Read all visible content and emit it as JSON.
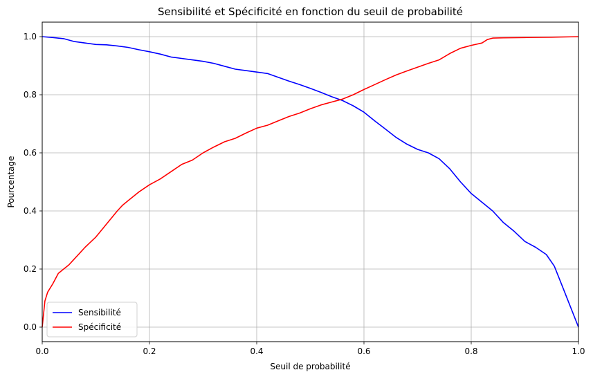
{
  "chart_data": {
    "type": "line",
    "title": "Sensibilité et Spécificité en fonction du seuil de probabilité",
    "xlabel": "Seuil de probabilité",
    "ylabel": "Pourcentage",
    "xlim": [
      0.0,
      1.0
    ],
    "ylim": [
      -0.05,
      1.05
    ],
    "xticks": [
      "0.0",
      "0.2",
      "0.4",
      "0.6",
      "0.8",
      "1.0"
    ],
    "yticks": [
      "0.0",
      "0.2",
      "0.4",
      "0.6",
      "0.8",
      "1.0"
    ],
    "grid": true,
    "legend_position": "lower-left",
    "series": [
      {
        "name": "Sensibilité",
        "color": "#0000ff",
        "points": [
          [
            0.0,
            1.0
          ],
          [
            0.02,
            0.997
          ],
          [
            0.04,
            0.993
          ],
          [
            0.06,
            0.983
          ],
          [
            0.08,
            0.978
          ],
          [
            0.1,
            0.973
          ],
          [
            0.12,
            0.972
          ],
          [
            0.14,
            0.968
          ],
          [
            0.16,
            0.963
          ],
          [
            0.18,
            0.955
          ],
          [
            0.2,
            0.948
          ],
          [
            0.22,
            0.94
          ],
          [
            0.24,
            0.93
          ],
          [
            0.26,
            0.925
          ],
          [
            0.28,
            0.92
          ],
          [
            0.3,
            0.915
          ],
          [
            0.32,
            0.908
          ],
          [
            0.34,
            0.898
          ],
          [
            0.36,
            0.888
          ],
          [
            0.38,
            0.883
          ],
          [
            0.4,
            0.878
          ],
          [
            0.42,
            0.873
          ],
          [
            0.44,
            0.86
          ],
          [
            0.46,
            0.847
          ],
          [
            0.48,
            0.835
          ],
          [
            0.5,
            0.822
          ],
          [
            0.52,
            0.808
          ],
          [
            0.54,
            0.793
          ],
          [
            0.56,
            0.78
          ],
          [
            0.58,
            0.762
          ],
          [
            0.6,
            0.74
          ],
          [
            0.62,
            0.71
          ],
          [
            0.64,
            0.682
          ],
          [
            0.66,
            0.653
          ],
          [
            0.68,
            0.63
          ],
          [
            0.7,
            0.612
          ],
          [
            0.72,
            0.6
          ],
          [
            0.74,
            0.58
          ],
          [
            0.76,
            0.545
          ],
          [
            0.78,
            0.5
          ],
          [
            0.8,
            0.46
          ],
          [
            0.82,
            0.43
          ],
          [
            0.84,
            0.4
          ],
          [
            0.86,
            0.36
          ],
          [
            0.88,
            0.33
          ],
          [
            0.9,
            0.295
          ],
          [
            0.92,
            0.275
          ],
          [
            0.94,
            0.25
          ],
          [
            0.955,
            0.21
          ],
          [
            0.97,
            0.14
          ],
          [
            0.985,
            0.07
          ],
          [
            1.0,
            0.0
          ]
        ]
      },
      {
        "name": "Spécificité",
        "color": "#ff0000",
        "points": [
          [
            0.0,
            0.0
          ],
          [
            0.005,
            0.09
          ],
          [
            0.01,
            0.12
          ],
          [
            0.02,
            0.15
          ],
          [
            0.03,
            0.185
          ],
          [
            0.04,
            0.2
          ],
          [
            0.05,
            0.215
          ],
          [
            0.06,
            0.235
          ],
          [
            0.07,
            0.255
          ],
          [
            0.08,
            0.275
          ],
          [
            0.1,
            0.31
          ],
          [
            0.12,
            0.355
          ],
          [
            0.14,
            0.4
          ],
          [
            0.15,
            0.42
          ],
          [
            0.16,
            0.435
          ],
          [
            0.18,
            0.465
          ],
          [
            0.2,
            0.49
          ],
          [
            0.22,
            0.51
          ],
          [
            0.24,
            0.535
          ],
          [
            0.26,
            0.56
          ],
          [
            0.28,
            0.575
          ],
          [
            0.3,
            0.6
          ],
          [
            0.32,
            0.62
          ],
          [
            0.34,
            0.638
          ],
          [
            0.36,
            0.65
          ],
          [
            0.38,
            0.668
          ],
          [
            0.4,
            0.685
          ],
          [
            0.42,
            0.695
          ],
          [
            0.44,
            0.71
          ],
          [
            0.46,
            0.725
          ],
          [
            0.48,
            0.737
          ],
          [
            0.5,
            0.752
          ],
          [
            0.52,
            0.765
          ],
          [
            0.54,
            0.775
          ],
          [
            0.56,
            0.785
          ],
          [
            0.58,
            0.8
          ],
          [
            0.6,
            0.818
          ],
          [
            0.62,
            0.835
          ],
          [
            0.64,
            0.852
          ],
          [
            0.66,
            0.868
          ],
          [
            0.68,
            0.882
          ],
          [
            0.7,
            0.895
          ],
          [
            0.72,
            0.908
          ],
          [
            0.74,
            0.92
          ],
          [
            0.76,
            0.942
          ],
          [
            0.78,
            0.96
          ],
          [
            0.8,
            0.97
          ],
          [
            0.82,
            0.978
          ],
          [
            0.83,
            0.99
          ],
          [
            0.84,
            0.995
          ],
          [
            0.86,
            0.996
          ],
          [
            0.9,
            0.997
          ],
          [
            0.95,
            0.998
          ],
          [
            1.0,
            1.0
          ]
        ]
      }
    ]
  }
}
